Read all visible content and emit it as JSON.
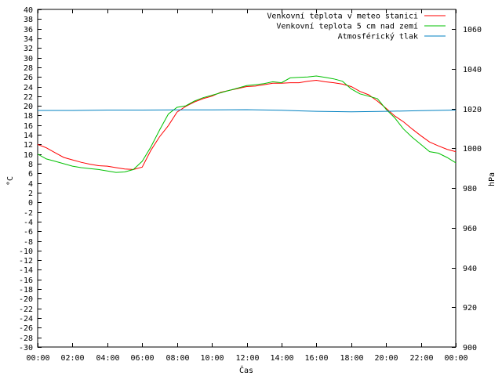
{
  "chart_data": {
    "type": "line",
    "xlabel": "Čas",
    "ylabel": "°C",
    "y2label": "hPa",
    "x_ticks": [
      "00:00",
      "02:00",
      "04:00",
      "06:00",
      "08:00",
      "10:00",
      "12:00",
      "14:00",
      "16:00",
      "18:00",
      "20:00",
      "22:00",
      "00:00"
    ],
    "xlim": [
      0,
      24
    ],
    "ylim": [
      -30,
      40
    ],
    "y_step": 2,
    "y2lim": [
      900,
      1070
    ],
    "y2_ticks": [
      900,
      920,
      940,
      960,
      980,
      1000,
      1020,
      1040,
      1060
    ],
    "grid": false,
    "legend_position": "top-right",
    "series": [
      {
        "name": "Venkovní teplota v meteo stanici",
        "color": "#ff0000",
        "axis": "left",
        "x": [
          0,
          0.5,
          1,
          1.5,
          2,
          2.5,
          3,
          3.5,
          4,
          4.5,
          5,
          5.5,
          6,
          6.5,
          7,
          7.5,
          8,
          8.5,
          9,
          9.5,
          10,
          10.5,
          11,
          11.5,
          12,
          12.5,
          13,
          13.5,
          14,
          14.5,
          15,
          15.5,
          16,
          16.5,
          17,
          17.5,
          18,
          18.5,
          19,
          19.5,
          20,
          20.5,
          21,
          21.5,
          22,
          22.5,
          23,
          23.5,
          24
        ],
        "y": [
          12,
          11.3,
          10.3,
          9.3,
          8.8,
          8.3,
          7.9,
          7.6,
          7.5,
          7.2,
          6.9,
          6.8,
          7.3,
          10.8,
          13.6,
          15.9,
          18.7,
          19.9,
          20.8,
          21.5,
          22,
          22.8,
          23.2,
          23.6,
          24,
          24.1,
          24.4,
          24.7,
          24.7,
          24.8,
          24.8,
          25.1,
          25.3,
          25.0,
          24.8,
          24.5,
          24.0,
          23.0,
          22.3,
          21.0,
          19.5,
          17.9,
          16.7,
          15.2,
          13.8,
          12.5,
          11.7,
          11.0,
          10.5
        ]
      },
      {
        "name": "Venkovní teplota 5 cm nad zemí",
        "color": "#00c000",
        "axis": "left",
        "x": [
          0,
          0.5,
          1,
          1.5,
          2,
          2.5,
          3,
          3.5,
          4,
          4.5,
          5,
          5.5,
          6,
          6.5,
          7,
          7.5,
          8,
          8.5,
          9,
          9.5,
          10,
          10.5,
          11,
          11.5,
          12,
          12.5,
          13,
          13.5,
          14,
          14.5,
          15,
          15.5,
          16,
          16.5,
          17,
          17.5,
          18,
          18.5,
          19,
          19.5,
          20,
          20.5,
          21,
          21.5,
          22,
          22.5,
          23,
          23.5,
          24
        ],
        "y": [
          10,
          9.0,
          8.5,
          8.0,
          7.5,
          7.2,
          7.0,
          6.8,
          6.5,
          6.2,
          6.3,
          6.8,
          8.5,
          11.5,
          15.0,
          18.3,
          19.7,
          20.0,
          21.0,
          21.7,
          22.2,
          22.7,
          23.2,
          23.7,
          24.2,
          24.4,
          24.6,
          25.0,
          24.8,
          25.8,
          25.9,
          26.0,
          26.2,
          25.9,
          25.6,
          25.1,
          23.5,
          22.5,
          22.0,
          21.5,
          19.3,
          17.5,
          15.2,
          13.5,
          12.0,
          10.5,
          10.2,
          9.3,
          8.2
        ]
      },
      {
        "name": "Atmosférický tlak",
        "color": "#0080c0",
        "axis": "right",
        "x": [
          0,
          2,
          4,
          6,
          8,
          10,
          12,
          14,
          16,
          18,
          20,
          22,
          24
        ],
        "y": [
          1019.1,
          1019.1,
          1019.3,
          1019.3,
          1019.4,
          1019.4,
          1019.5,
          1019.2,
          1018.7,
          1018.4,
          1018.7,
          1019.0,
          1019.3
        ]
      }
    ]
  }
}
